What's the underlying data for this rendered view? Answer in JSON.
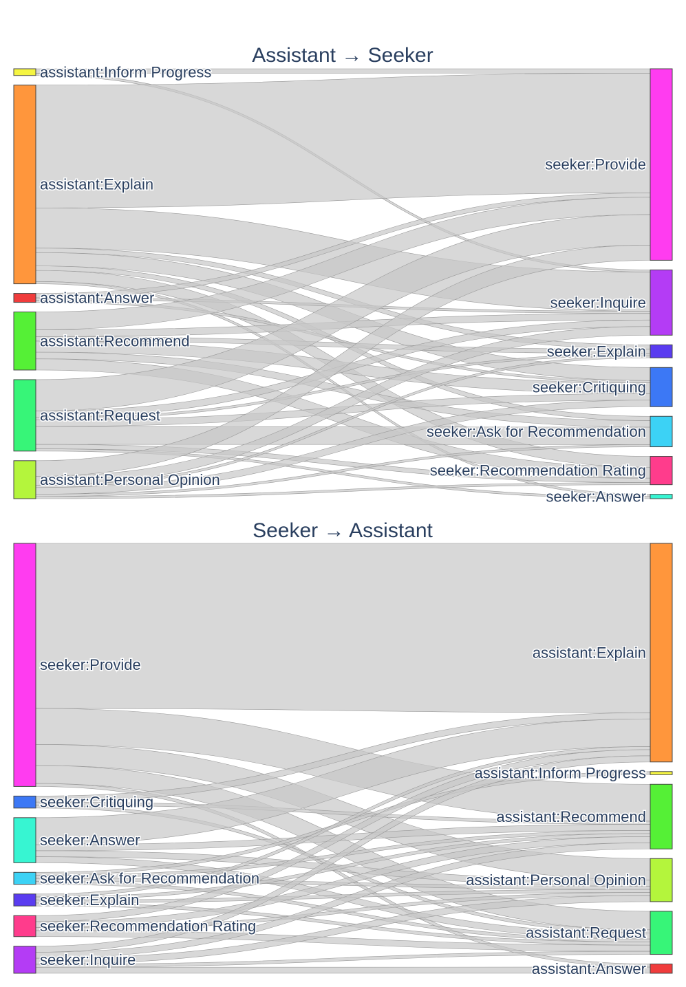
{
  "chart_data": [
    {
      "type": "sankey",
      "title": "Assistant → Seeker",
      "colors": {
        "link": "#c8c8c8",
        "node_outline": "#444444",
        "text": "#2a3f5f"
      },
      "nodes_left": [
        {
          "id": "a_ip",
          "label": "assistant:Inform Progress",
          "color": "#f5f542"
        },
        {
          "id": "a_ex",
          "label": "assistant:Explain",
          "color": "#ff963c"
        },
        {
          "id": "a_an",
          "label": "assistant:Answer",
          "color": "#f03c3c"
        },
        {
          "id": "a_rc",
          "label": "assistant:Recommend",
          "color": "#55f036"
        },
        {
          "id": "a_rq",
          "label": "assistant:Request",
          "color": "#37f578"
        },
        {
          "id": "a_po",
          "label": "assistant:Personal Opinion",
          "color": "#b4f53c"
        }
      ],
      "nodes_right": [
        {
          "id": "s_pr",
          "label": "seeker:Provide",
          "color": "#ff3cf0"
        },
        {
          "id": "s_in",
          "label": "seeker:Inquire",
          "color": "#b43cf5"
        },
        {
          "id": "s_ex",
          "label": "seeker:Explain",
          "color": "#5a3cf0"
        },
        {
          "id": "s_cr",
          "label": "seeker:Critiquing",
          "color": "#3c78f5"
        },
        {
          "id": "s_ar",
          "label": "seeker:Ask for Recommendation",
          "color": "#3cd2f5"
        },
        {
          "id": "s_rr",
          "label": "seeker:Recommendation Rating",
          "color": "#ff3c8c"
        },
        {
          "id": "s_an",
          "label": "seeker:Answer",
          "color": "#37f5d2"
        }
      ],
      "links": [
        {
          "source": "a_ip",
          "target": "s_pr",
          "value": 2
        },
        {
          "source": "a_ip",
          "target": "s_in",
          "value": 1
        },
        {
          "source": "a_ex",
          "target": "s_pr",
          "value": 55
        },
        {
          "source": "a_ex",
          "target": "s_in",
          "value": 18
        },
        {
          "source": "a_ex",
          "target": "s_ex",
          "value": 2
        },
        {
          "source": "a_ex",
          "target": "s_cr",
          "value": 6
        },
        {
          "source": "a_ex",
          "target": "s_ar",
          "value": 2
        },
        {
          "source": "a_ex",
          "target": "s_rr",
          "value": 5
        },
        {
          "source": "a_ex",
          "target": "s_an",
          "value": 1
        },
        {
          "source": "a_an",
          "target": "s_pr",
          "value": 2
        },
        {
          "source": "a_an",
          "target": "s_in",
          "value": 1
        },
        {
          "source": "a_an",
          "target": "s_cr",
          "value": 1
        },
        {
          "source": "a_rc",
          "target": "s_pr",
          "value": 8
        },
        {
          "source": "a_rc",
          "target": "s_in",
          "value": 3
        },
        {
          "source": "a_rc",
          "target": "s_ex",
          "value": 2
        },
        {
          "source": "a_rc",
          "target": "s_cr",
          "value": 5
        },
        {
          "source": "a_rc",
          "target": "s_ar",
          "value": 3
        },
        {
          "source": "a_rc",
          "target": "s_rr",
          "value": 5
        },
        {
          "source": "a_rq",
          "target": "s_pr",
          "value": 14
        },
        {
          "source": "a_rq",
          "target": "s_in",
          "value": 3
        },
        {
          "source": "a_rq",
          "target": "s_ex",
          "value": 1
        },
        {
          "source": "a_rq",
          "target": "s_cr",
          "value": 3
        },
        {
          "source": "a_rq",
          "target": "s_ar",
          "value": 8
        },
        {
          "source": "a_rq",
          "target": "s_rr",
          "value": 2
        },
        {
          "source": "a_rq",
          "target": "s_an",
          "value": 1
        },
        {
          "source": "a_po",
          "target": "s_pr",
          "value": 7
        },
        {
          "source": "a_po",
          "target": "s_in",
          "value": 4
        },
        {
          "source": "a_po",
          "target": "s_ex",
          "value": 1
        },
        {
          "source": "a_po",
          "target": "s_cr",
          "value": 3
        },
        {
          "source": "a_po",
          "target": "s_ar",
          "value": 1
        },
        {
          "source": "a_po",
          "target": "s_rr",
          "value": 1
        }
      ]
    },
    {
      "type": "sankey",
      "title": "Seeker → Assistant",
      "colors": {
        "link": "#c8c8c8",
        "node_outline": "#444444",
        "text": "#2a3f5f"
      },
      "nodes_left": [
        {
          "id": "s_pr",
          "label": "seeker:Provide",
          "color": "#ff3cf0"
        },
        {
          "id": "s_cr",
          "label": "seeker:Critiquing",
          "color": "#3c78f5"
        },
        {
          "id": "s_an",
          "label": "seeker:Answer",
          "color": "#37f5d2"
        },
        {
          "id": "s_ar",
          "label": "seeker:Ask for Recommendation",
          "color": "#3cd2f5"
        },
        {
          "id": "s_ex",
          "label": "seeker:Explain",
          "color": "#5a3cf0"
        },
        {
          "id": "s_rr",
          "label": "seeker:Recommendation Rating",
          "color": "#ff3c8c"
        },
        {
          "id": "s_in",
          "label": "seeker:Inquire",
          "color": "#b43cf5"
        }
      ],
      "nodes_right": [
        {
          "id": "a_ex",
          "label": "assistant:Explain",
          "color": "#ff963c"
        },
        {
          "id": "a_ip",
          "label": "assistant:Inform Progress",
          "color": "#f5f542"
        },
        {
          "id": "a_rc",
          "label": "assistant:Recommend",
          "color": "#55f036"
        },
        {
          "id": "a_po",
          "label": "assistant:Personal Opinion",
          "color": "#b4f53c"
        },
        {
          "id": "a_rq",
          "label": "assistant:Request",
          "color": "#37f578"
        },
        {
          "id": "a_an",
          "label": "assistant:Answer",
          "color": "#f03c3c"
        }
      ],
      "links": [
        {
          "source": "s_pr",
          "target": "a_ex",
          "value": 55
        },
        {
          "source": "s_pr",
          "target": "a_rc",
          "value": 12
        },
        {
          "source": "s_pr",
          "target": "a_po",
          "value": 7
        },
        {
          "source": "s_pr",
          "target": "a_rq",
          "value": 6
        },
        {
          "source": "s_pr",
          "target": "a_an",
          "value": 1
        },
        {
          "source": "s_cr",
          "target": "a_ex",
          "value": 2
        },
        {
          "source": "s_cr",
          "target": "a_rc",
          "value": 1
        },
        {
          "source": "s_cr",
          "target": "a_rq",
          "value": 1
        },
        {
          "source": "s_an",
          "target": "a_ex",
          "value": 9
        },
        {
          "source": "s_an",
          "target": "a_rc",
          "value": 2
        },
        {
          "source": "s_an",
          "target": "a_po",
          "value": 2
        },
        {
          "source": "s_an",
          "target": "a_rq",
          "value": 2
        },
        {
          "source": "s_ar",
          "target": "a_ip",
          "value": 1
        },
        {
          "source": "s_ar",
          "target": "a_rc",
          "value": 1
        },
        {
          "source": "s_ar",
          "target": "a_po",
          "value": 1
        },
        {
          "source": "s_ar",
          "target": "a_rq",
          "value": 1
        },
        {
          "source": "s_ex",
          "target": "a_ex",
          "value": 1
        },
        {
          "source": "s_ex",
          "target": "a_rc",
          "value": 1
        },
        {
          "source": "s_ex",
          "target": "a_po",
          "value": 1
        },
        {
          "source": "s_ex",
          "target": "a_rq",
          "value": 1
        },
        {
          "source": "s_rr",
          "target": "a_ex",
          "value": 2
        },
        {
          "source": "s_rr",
          "target": "a_rc",
          "value": 2
        },
        {
          "source": "s_rr",
          "target": "a_po",
          "value": 1
        },
        {
          "source": "s_rr",
          "target": "a_rq",
          "value": 2
        },
        {
          "source": "s_in",
          "target": "a_ex",
          "value": 2
        },
        {
          "source": "s_in",
          "target": "a_rc",
          "value": 2
        },
        {
          "source": "s_in",
          "target": "a_po",
          "value": 2
        },
        {
          "source": "s_in",
          "target": "a_rq",
          "value": 1
        },
        {
          "source": "s_in",
          "target": "a_an",
          "value": 2
        }
      ]
    }
  ]
}
